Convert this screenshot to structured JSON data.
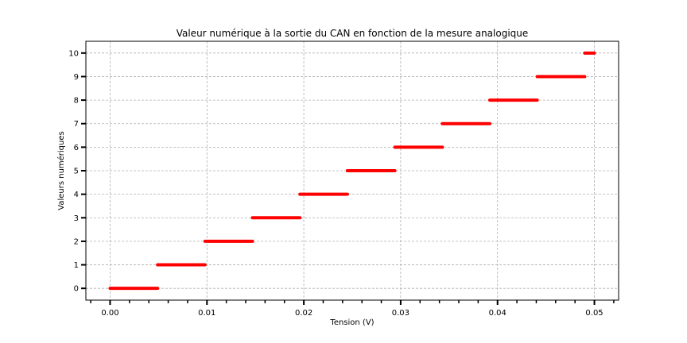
{
  "chart_data": {
    "type": "line",
    "title": "Valeur numérique à la sortie du CAN en fonction de la mesure analogique",
    "xlabel": "Tension (V)",
    "ylabel": "Valeurs numériques",
    "xlim": [
      -0.0025,
      0.0525
    ],
    "ylim": [
      -0.5,
      10.5
    ],
    "xticks": [
      0.0,
      0.01,
      0.02,
      0.03,
      0.04,
      0.05
    ],
    "xtick_labels": [
      "0.00",
      "0.01",
      "0.02",
      "0.03",
      "0.04",
      "0.05"
    ],
    "x_minor_step": 0.002,
    "yticks": [
      0,
      1,
      2,
      3,
      4,
      5,
      6,
      7,
      8,
      9,
      10
    ],
    "ytick_labels": [
      "0",
      "1",
      "2",
      "3",
      "4",
      "5",
      "6",
      "7",
      "8",
      "9",
      "10"
    ],
    "grid": true,
    "series": [
      {
        "color": "#ff0000",
        "segments": [
          {
            "x_start": 0.0,
            "x_end": 0.0049,
            "y": 0
          },
          {
            "x_start": 0.0049,
            "x_end": 0.0098,
            "y": 1
          },
          {
            "x_start": 0.0098,
            "x_end": 0.0147,
            "y": 2
          },
          {
            "x_start": 0.0147,
            "x_end": 0.0196,
            "y": 3
          },
          {
            "x_start": 0.0196,
            "x_end": 0.0245,
            "y": 4
          },
          {
            "x_start": 0.0245,
            "x_end": 0.0294,
            "y": 5
          },
          {
            "x_start": 0.0294,
            "x_end": 0.0343,
            "y": 6
          },
          {
            "x_start": 0.0343,
            "x_end": 0.0392,
            "y": 7
          },
          {
            "x_start": 0.0392,
            "x_end": 0.0441,
            "y": 8
          },
          {
            "x_start": 0.0441,
            "x_end": 0.049,
            "y": 9
          },
          {
            "x_start": 0.049,
            "x_end": 0.05,
            "y": 10
          }
        ]
      }
    ]
  }
}
